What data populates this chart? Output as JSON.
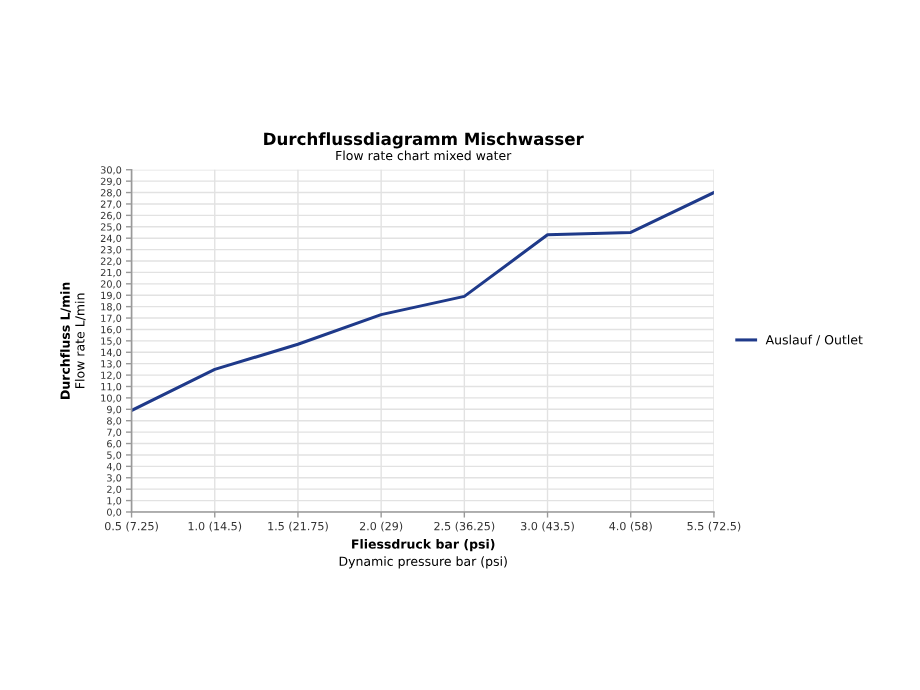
{
  "chart_data": {
    "type": "line",
    "title": "Durchflussdiagramm Mischwasser",
    "subtitle": "Flow rate chart mixed water",
    "xlabel": "Fliessdruck bar (psi)\nDynamic pressure bar (psi)",
    "ylabel": "Durchfluss L/min\nFlow rate L/min",
    "categories": [
      "0.5 (7.25)",
      "1.0 (14.5)",
      "1.5 (21.75)",
      "2.0 (29)",
      "2.5 (36.25)",
      "3.0 (43.5)",
      "4.0 (58)",
      "5.5 (72.5)"
    ],
    "series": [
      {
        "name": "Auslauf / Outlet",
        "color": "#1f3a8a",
        "values": [
          8.9,
          12.5,
          14.7,
          17.3,
          18.9,
          24.3,
          24.5,
          28.0
        ]
      }
    ],
    "ylim": [
      0,
      30
    ],
    "yticks": [
      {
        "value": 0,
        "label": "0,0"
      },
      {
        "value": 1,
        "label": "1,0"
      },
      {
        "value": 2,
        "label": "2,0"
      },
      {
        "value": 3,
        "label": "3,0"
      },
      {
        "value": 4,
        "label": "4,0"
      },
      {
        "value": 5,
        "label": "5,0"
      },
      {
        "value": 6,
        "label": "6,0"
      },
      {
        "value": 7,
        "label": "7,0"
      },
      {
        "value": 8,
        "label": "8,0"
      },
      {
        "value": 9,
        "label": "9,0"
      },
      {
        "value": 10,
        "label": "10,0"
      },
      {
        "value": 11,
        "label": "11,0"
      },
      {
        "value": 12,
        "label": "12,0"
      },
      {
        "value": 13,
        "label": "13,0"
      },
      {
        "value": 14,
        "label": "14,0"
      },
      {
        "value": 15,
        "label": "15,0"
      },
      {
        "value": 16,
        "label": "16,0"
      },
      {
        "value": 17,
        "label": "17,0"
      },
      {
        "value": 18,
        "label": "18,0"
      },
      {
        "value": 19,
        "label": "19,0"
      },
      {
        "value": 20,
        "label": "20,0"
      },
      {
        "value": 21,
        "label": "21,0"
      },
      {
        "value": 22,
        "label": "22,0"
      },
      {
        "value": 23,
        "label": "23,0"
      },
      {
        "value": 24,
        "label": "24,0"
      },
      {
        "value": 25,
        "label": "25,0"
      },
      {
        "value": 26,
        "label": "26,0"
      },
      {
        "value": 27,
        "label": "27,0"
      },
      {
        "value": 28,
        "label": "28,0"
      },
      {
        "value": 29,
        "label": "29,0"
      },
      {
        "value": 30,
        "label": "30,0"
      }
    ],
    "grid": true,
    "legend": "right",
    "marker": "none",
    "line_style": "solid"
  }
}
